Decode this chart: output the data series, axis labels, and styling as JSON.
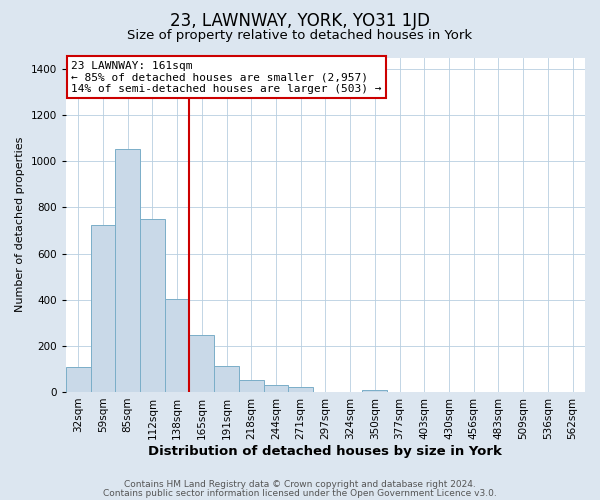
{
  "title": "23, LAWNWAY, YORK, YO31 1JD",
  "subtitle": "Size of property relative to detached houses in York",
  "xlabel": "Distribution of detached houses by size in York",
  "ylabel": "Number of detached properties",
  "bin_labels": [
    "32sqm",
    "59sqm",
    "85sqm",
    "112sqm",
    "138sqm",
    "165sqm",
    "191sqm",
    "218sqm",
    "244sqm",
    "271sqm",
    "297sqm",
    "324sqm",
    "350sqm",
    "377sqm",
    "403sqm",
    "430sqm",
    "456sqm",
    "483sqm",
    "509sqm",
    "536sqm",
    "562sqm"
  ],
  "bar_values": [
    107,
    722,
    1055,
    748,
    401,
    245,
    112,
    50,
    28,
    22,
    0,
    0,
    10,
    0,
    0,
    0,
    0,
    0,
    0,
    0,
    0
  ],
  "bar_color": "#c9d9e8",
  "bar_edgecolor": "#7aaec8",
  "annotation_line1": "23 LAWNWAY: 161sqm",
  "annotation_line2": "← 85% of detached houses are smaller (2,957)",
  "annotation_line3": "14% of semi-detached houses are larger (503) →",
  "annotation_box_color": "white",
  "annotation_box_edgecolor": "#cc0000",
  "vline_color": "#cc0000",
  "ylim": [
    0,
    1450
  ],
  "yticks": [
    0,
    200,
    400,
    600,
    800,
    1000,
    1200,
    1400
  ],
  "background_color": "#dce6f0",
  "plot_bg_color": "white",
  "footer1": "Contains HM Land Registry data © Crown copyright and database right 2024.",
  "footer2": "Contains public sector information licensed under the Open Government Licence v3.0.",
  "title_fontsize": 12,
  "subtitle_fontsize": 9.5,
  "xlabel_fontsize": 9.5,
  "ylabel_fontsize": 8,
  "tick_fontsize": 7.5,
  "footer_fontsize": 6.5
}
